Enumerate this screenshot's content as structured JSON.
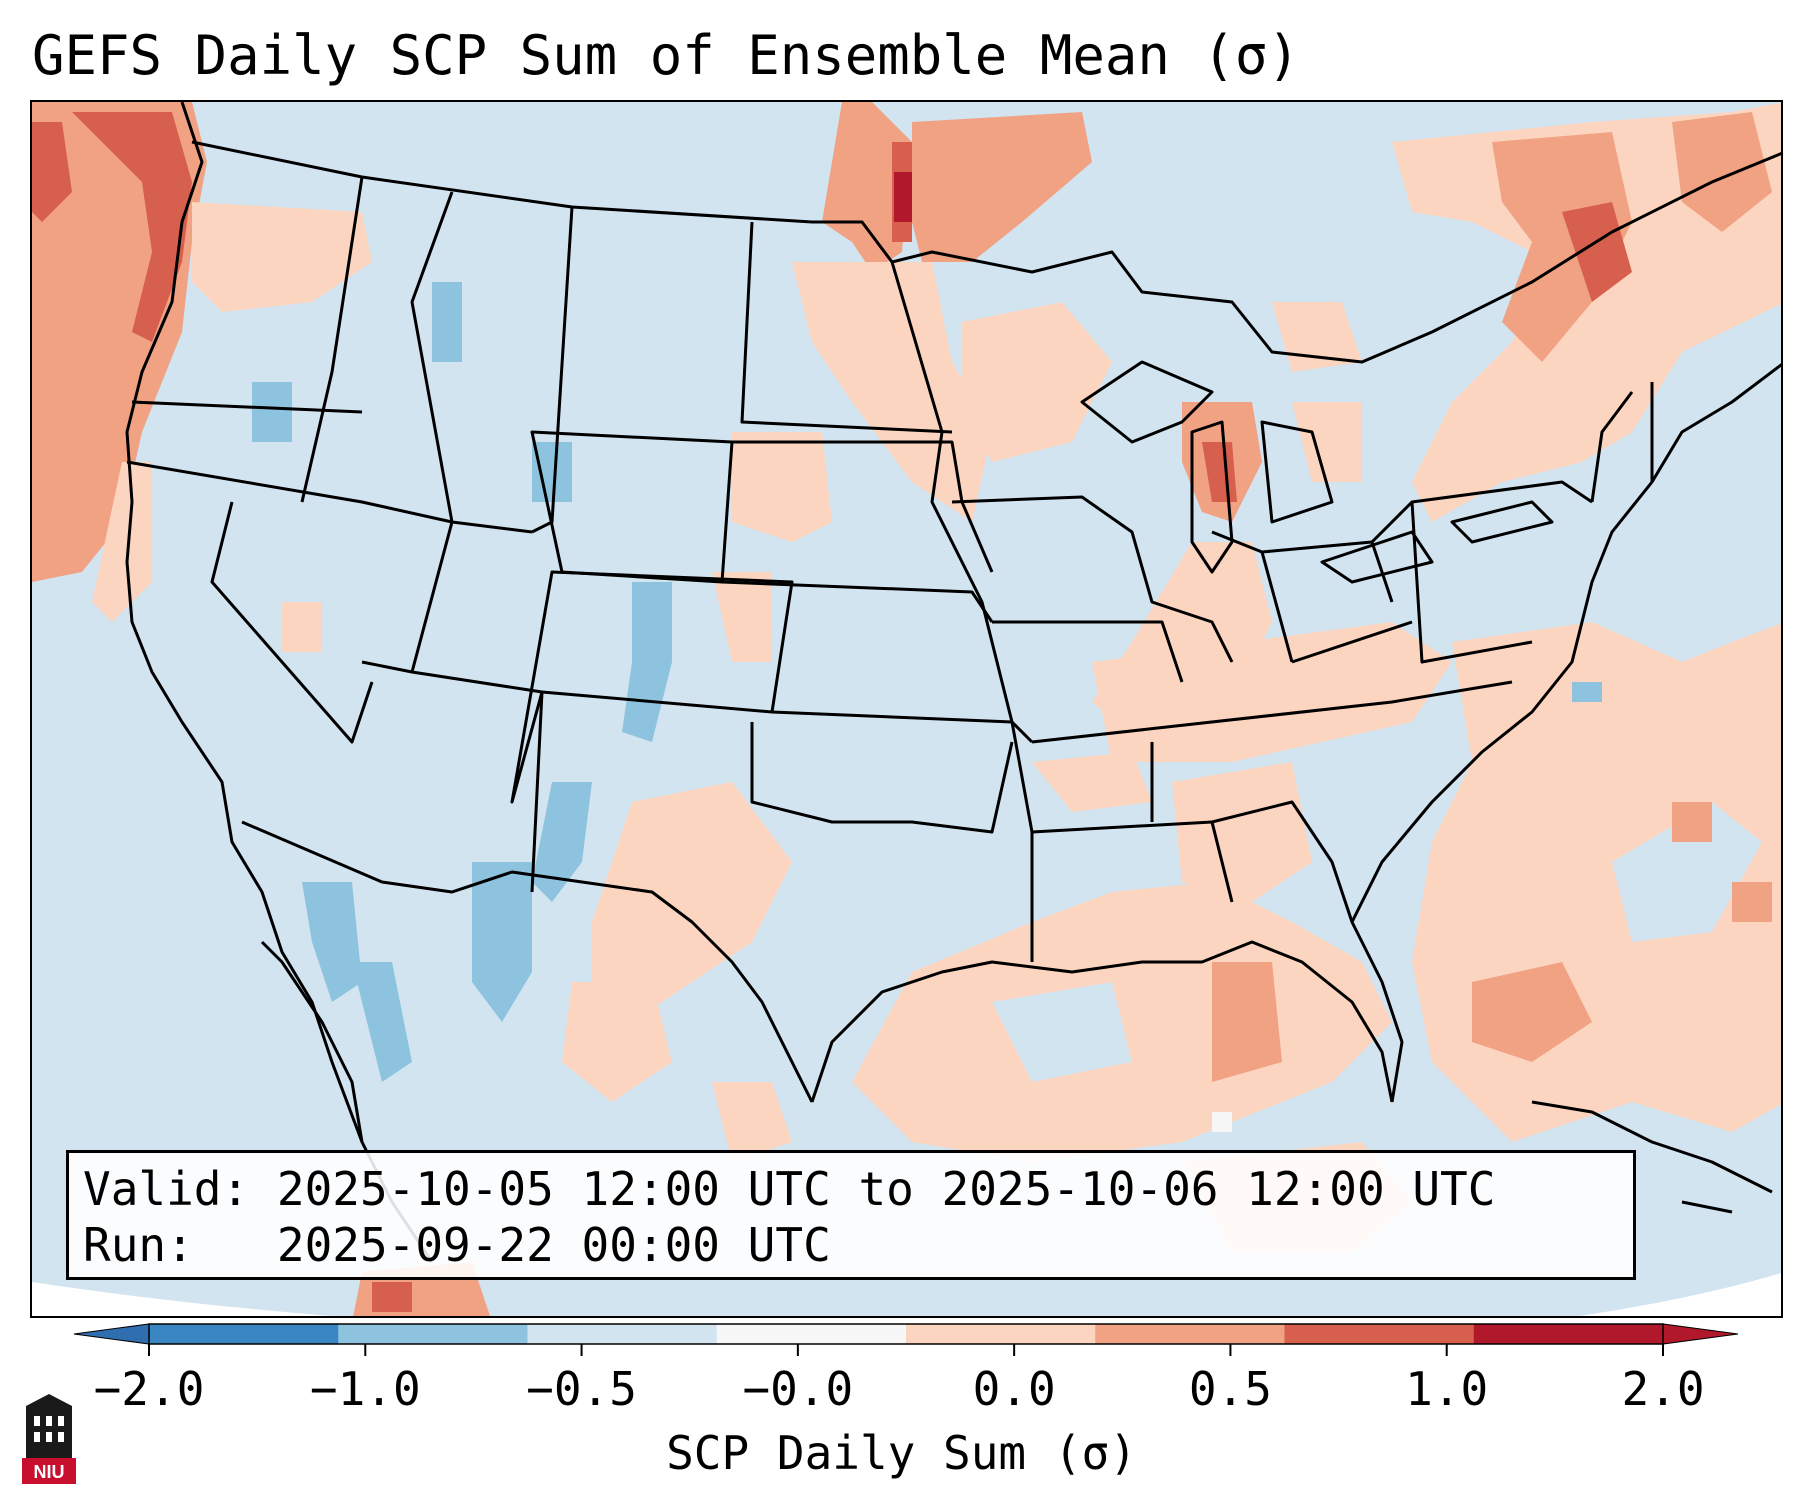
{
  "title": "GEFS Daily SCP Sum of Ensemble Mean (σ)",
  "info": {
    "valid_label": "Valid:",
    "valid_text": "2025-10-05 12:00 UTC to 2025-10-06 12:00 UTC",
    "run_label": "Run:",
    "run_text": "2025-09-22 00:00 UTC"
  },
  "colorbar": {
    "label": "SCP Daily Sum (σ)",
    "ticks": [
      "−2.0",
      "−1.0",
      "−0.5",
      "−0.0",
      "0.0",
      "0.5",
      "1.0",
      "2.0"
    ],
    "colors": [
      "#3a86c2",
      "#8ec3df",
      "#d2e4f0",
      "#f7f7f7",
      "#fcd5c0",
      "#f0a283",
      "#d6604d",
      "#b2182b"
    ],
    "extend_low_color": "#2f6fb0",
    "extend_high_color": "#b2182b"
  },
  "map_colors": {
    "ocean_neutral": "#d2e4f0",
    "land_neutral": "#d2e4f0",
    "light_pos": "#fcd5c0",
    "mid_pos": "#f0a283",
    "strong_pos": "#d6604d",
    "max_pos": "#b2182b",
    "light_neg": "#8ec3df",
    "boundary": "#000000"
  },
  "logo": {
    "text": "NIU",
    "name": "niu-logo"
  }
}
